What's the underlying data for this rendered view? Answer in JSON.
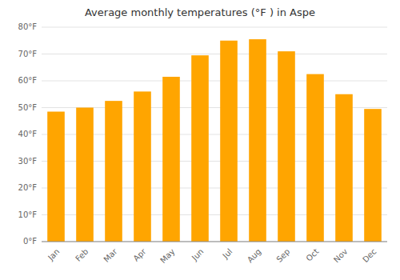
{
  "chart_data": {
    "type": "bar",
    "title": "Average monthly temperatures (°F ) in Aspe",
    "categories": [
      "Jan",
      "Feb",
      "Mar",
      "Apr",
      "May",
      "Jun",
      "Jul",
      "Aug",
      "Sep",
      "Oct",
      "Nov",
      "Dec"
    ],
    "values": [
      48.5,
      50.0,
      52.5,
      56.0,
      61.5,
      69.5,
      75.0,
      75.5,
      71.0,
      62.5,
      55.0,
      49.5
    ],
    "color": "#FFA500",
    "ylim": [
      0,
      80
    ],
    "yticks": [
      {
        "value": 0,
        "label": "0°F"
      },
      {
        "value": 10,
        "label": "10°F"
      },
      {
        "value": 20,
        "label": "20°F"
      },
      {
        "value": 30,
        "label": "30°F"
      },
      {
        "value": 40,
        "label": "40°F"
      },
      {
        "value": 50,
        "label": "50°F"
      },
      {
        "value": 60,
        "label": "60°F"
      },
      {
        "value": 70,
        "label": "70°F"
      },
      {
        "value": 80,
        "label": "80°F"
      }
    ],
    "grid": true
  }
}
